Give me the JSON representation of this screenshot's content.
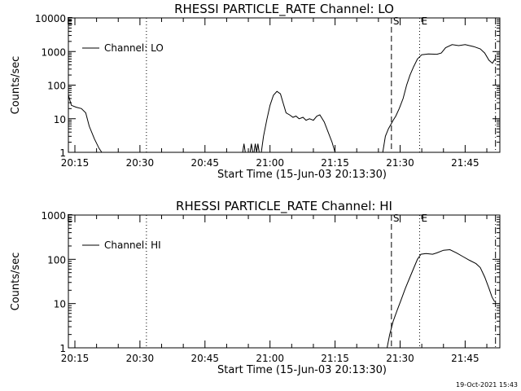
{
  "footer": {
    "timestamp": "19-Oct-2021 15:43"
  },
  "chart_data": [
    {
      "type": "line",
      "title": "RHESSI PARTICLE_RATE Channel: LO",
      "xlabel": "Start Time (15-Jun-03 20:13:30)",
      "ylabel": "Counts/sec",
      "log_y": true,
      "ylim": [
        1,
        10000
      ],
      "xlim_min": [
        -1.5,
        61.5
      ],
      "x_unit": "minutes after 20:15",
      "x_ticks": [
        0,
        15,
        30,
        45,
        60,
        75,
        90
      ],
      "x_tick_labels": [
        "20:15",
        "20:30",
        "20:45",
        "21:00",
        "21:15",
        "21:30",
        "21:45"
      ],
      "y_ticks": [
        1,
        10,
        100,
        1000,
        10000
      ],
      "y_tick_labels": [
        "1",
        "10",
        "100",
        "1000",
        "10000"
      ],
      "legend": {
        "position": "top-left",
        "entries": [
          "Channel: LO"
        ]
      },
      "markers": [
        {
          "label": "",
          "x": 16.5,
          "style": "dotted"
        },
        {
          "label": "S",
          "x": 73.0,
          "style": "dashed"
        },
        {
          "label": "E",
          "x": 79.5,
          "style": "dotted"
        },
        {
          "label": "",
          "x": 97.0,
          "style": "dashdot"
        }
      ],
      "corner_mark": "E",
      "series": [
        {
          "name": "Channel: LO",
          "segments": [
            [
              [
                -1.5,
                50
              ],
              [
                -0.8,
                25
              ],
              [
                0.3,
                22
              ],
              [
                1.5,
                20
              ],
              [
                2.5,
                15
              ],
              [
                3.3,
                6
              ],
              [
                4.5,
                2.5
              ],
              [
                5.6,
                1.3
              ],
              [
                6.2,
                1
              ]
            ],
            [
              [
                38.7,
                1
              ],
              [
                39.0,
                1.8
              ],
              [
                39.3,
                1
              ]
            ],
            [
              [
                40.4,
                1
              ],
              [
                40.7,
                1.8
              ],
              [
                41.0,
                1
              ]
            ],
            [
              [
                41.3,
                1
              ],
              [
                41.6,
                1.8
              ],
              [
                41.9,
                1
              ],
              [
                42.2,
                1.8
              ],
              [
                42.5,
                1
              ]
            ],
            [
              [
                43.0,
                1
              ],
              [
                43.5,
                3
              ],
              [
                44.3,
                10
              ],
              [
                45.0,
                25
              ],
              [
                45.8,
                50
              ],
              [
                46.6,
                65
              ],
              [
                47.4,
                55
              ],
              [
                48.0,
                30
              ],
              [
                48.7,
                15
              ],
              [
                49.5,
                13
              ],
              [
                50.3,
                11
              ],
              [
                51.0,
                12
              ],
              [
                51.7,
                10
              ],
              [
                52.6,
                11
              ],
              [
                53.3,
                9
              ],
              [
                54.1,
                10
              ],
              [
                55.0,
                9
              ],
              [
                55.8,
                12
              ],
              [
                56.5,
                13
              ],
              [
                57.5,
                8
              ],
              [
                58.4,
                4
              ],
              [
                59.3,
                2
              ],
              [
                60.0,
                1
              ]
            ],
            [
              [
                71.0,
                1
              ],
              [
                71.6,
                3
              ],
              [
                72.3,
                5
              ],
              [
                73.4,
                9
              ],
              [
                74.0,
                12
              ],
              [
                74.8,
                20
              ],
              [
                75.7,
                40
              ],
              [
                76.5,
                100
              ],
              [
                77.3,
                200
              ],
              [
                78.1,
                350
              ],
              [
                79.0,
                600
              ],
              [
                80.0,
                800
              ],
              [
                81.5,
                850
              ],
              [
                83.5,
                830
              ],
              [
                84.5,
                900
              ],
              [
                85.5,
                1300
              ],
              [
                87.0,
                1600
              ],
              [
                88.5,
                1500
              ],
              [
                90.0,
                1600
              ],
              [
                92.0,
                1400
              ],
              [
                93.5,
                1200
              ],
              [
                94.5,
                900
              ],
              [
                95.5,
                550
              ],
              [
                96.3,
                450
              ],
              [
                96.9,
                600
              ]
            ]
          ]
        }
      ]
    },
    {
      "type": "line",
      "title": "RHESSI PARTICLE_RATE Channel: HI",
      "xlabel": "Start Time (15-Jun-03 20:13:30)",
      "ylabel": "Counts/sec",
      "log_y": true,
      "ylim": [
        1,
        1000
      ],
      "x_unit": "minutes after 20:15",
      "x_ticks": [
        0,
        15,
        30,
        45,
        60,
        75,
        90
      ],
      "x_tick_labels": [
        "20:15",
        "20:30",
        "20:45",
        "21:00",
        "21:15",
        "21:30",
        "21:45"
      ],
      "y_ticks": [
        1,
        10,
        100,
        1000
      ],
      "y_tick_labels": [
        "1",
        "10",
        "100",
        "1000"
      ],
      "legend": {
        "position": "top-left",
        "entries": [
          "Channel: HI"
        ]
      },
      "markers": [
        {
          "label": "",
          "x": 16.5,
          "style": "dotted"
        },
        {
          "label": "S",
          "x": 73.0,
          "style": "dashed"
        },
        {
          "label": "E",
          "x": 79.5,
          "style": "dotted"
        },
        {
          "label": "",
          "x": 97.0,
          "style": "dashdot"
        }
      ],
      "corner_mark": "E",
      "series": [
        {
          "name": "Channel: HI",
          "segments": [
            [
              [
                72.0,
                1
              ],
              [
                72.6,
                2
              ],
              [
                73.4,
                4
              ],
              [
                74.3,
                7
              ],
              [
                75.2,
                12
              ],
              [
                76.2,
                22
              ],
              [
                77.3,
                40
              ],
              [
                78.2,
                65
              ],
              [
                79.0,
                100
              ],
              [
                79.8,
                130
              ],
              [
                81.0,
                135
              ],
              [
                82.5,
                130
              ],
              [
                83.5,
                140
              ],
              [
                85.0,
                160
              ],
              [
                86.5,
                165
              ],
              [
                88.0,
                140
              ],
              [
                89.5,
                115
              ],
              [
                91.0,
                95
              ],
              [
                92.5,
                80
              ],
              [
                93.5,
                65
              ],
              [
                94.5,
                40
              ],
              [
                95.5,
                22
              ],
              [
                96.2,
                14
              ],
              [
                96.8,
                11
              ]
            ]
          ]
        }
      ]
    }
  ]
}
